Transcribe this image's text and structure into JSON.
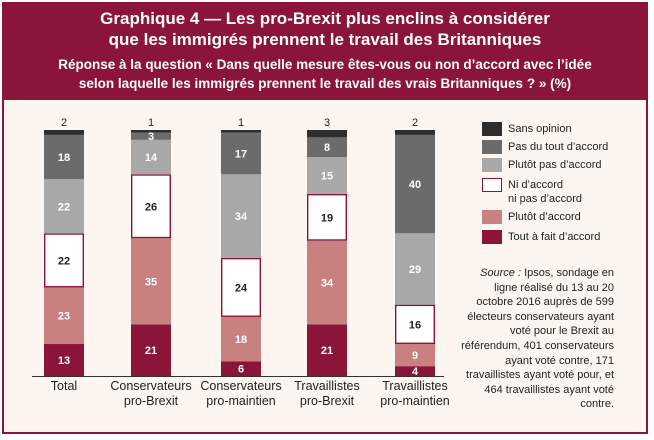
{
  "title": {
    "line1": "Graphique 4 — Les pro-Brexit plus enclins à considérer",
    "line2": "que les immigrés prennent le travail des Britanniques",
    "subtitle1": "Réponse à la question « Dans quelle mesure êtes-vous ou non d’accord avec l’idée",
    "subtitle2": "selon laquelle les immigrés prennent le travail des vrais Britanniques ? » (%)"
  },
  "source": {
    "label": "Source :",
    "text": "Ipsos, sondage en ligne réalisé du 13 au 20 octobre 2016 auprès de 599 électeurs conservateurs ayant voté pour le Brexit au référendum, 401 conservateurs ayant voté contre, 171 travaillistes ayant voté pour, et 464 travaillistes ayant voté contre."
  },
  "chart_data": {
    "type": "bar",
    "stacked": true,
    "categories": [
      [
        "Total"
      ],
      [
        "Conservateurs",
        "pro-Brexit"
      ],
      [
        "Conservateurs",
        "pro-maintien"
      ],
      [
        "Travaillistes",
        "pro-Brexit"
      ],
      [
        "Travaillistes",
        "pro-maintien"
      ]
    ],
    "series": [
      {
        "name": "Tout à fait d’accord",
        "color": "#8b1538",
        "label_color": "#ffffff",
        "values": [
          13,
          21,
          6,
          21,
          4
        ]
      },
      {
        "name": "Plutôt d’accord",
        "color": "#c98080",
        "label_color": "#ffffff",
        "values": [
          23,
          35,
          18,
          34,
          9
        ]
      },
      {
        "name": "Ni d’accord ni pas d’accord",
        "legend_lines": [
          "Ni d’accord",
          "ni pas d’accord"
        ],
        "color": "#ffffff",
        "border": "#8b1538",
        "label_color": "#222222",
        "values": [
          22,
          26,
          24,
          19,
          16
        ]
      },
      {
        "name": "Plutôt pas d’accord",
        "color": "#a8a8a8",
        "label_color": "#ffffff",
        "values": [
          22,
          14,
          34,
          15,
          29
        ]
      },
      {
        "name": "Pas du tout d’accord",
        "color": "#6b6b6b",
        "label_color": "#ffffff",
        "values": [
          18,
          3,
          17,
          8,
          40
        ]
      },
      {
        "name": "Sans opinion",
        "color": "#2e2e2e",
        "label_color": "#222222",
        "values": [
          2,
          1,
          1,
          3,
          2
        ]
      }
    ],
    "legend_order": [
      "Sans opinion",
      "Pas du tout d’accord",
      "Plutôt pas d’accord",
      "Ni d’accord ni pas d’accord",
      "Plutôt d’accord",
      "Tout à fait d’accord"
    ],
    "ylim": [
      0,
      100
    ],
    "grid": false,
    "legend_placement": "right"
  }
}
